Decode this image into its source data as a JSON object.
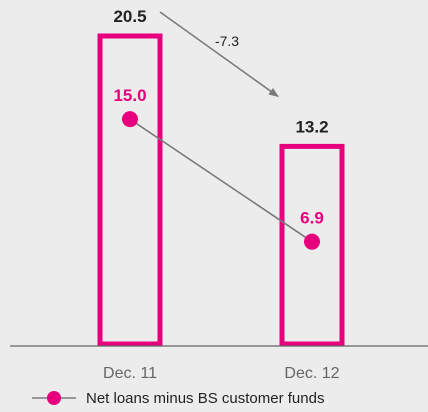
{
  "chart_data": {
    "type": "bar",
    "categories": [
      "Dec. 11",
      "Dec. 12"
    ],
    "series": [
      {
        "type": "bar",
        "values": [
          20.5,
          13.2
        ],
        "color": "#e6007e"
      },
      {
        "type": "line",
        "name": "Net loans minus BS customer funds",
        "values": [
          15.0,
          6.9
        ],
        "color": "#e6007e"
      }
    ],
    "data_labels": {
      "bars": [
        "20.5",
        "13.2"
      ],
      "points": [
        "15.0",
        "6.9"
      ]
    },
    "annotation": {
      "text": "-7.3",
      "from": "Dec. 11",
      "to": "Dec. 12",
      "color": "#7a7a7a"
    },
    "ylim": [
      0,
      20.5
    ],
    "grid": false,
    "legend": {
      "position": "bottom-left",
      "entries": [
        "Net loans minus BS customer funds"
      ]
    },
    "colors": {
      "accent": "#e6007e",
      "text_dark": "#222222",
      "text_muted": "#666666",
      "connector": "#7a7a7a",
      "axis": "#666666",
      "background": "#ececec"
    }
  }
}
